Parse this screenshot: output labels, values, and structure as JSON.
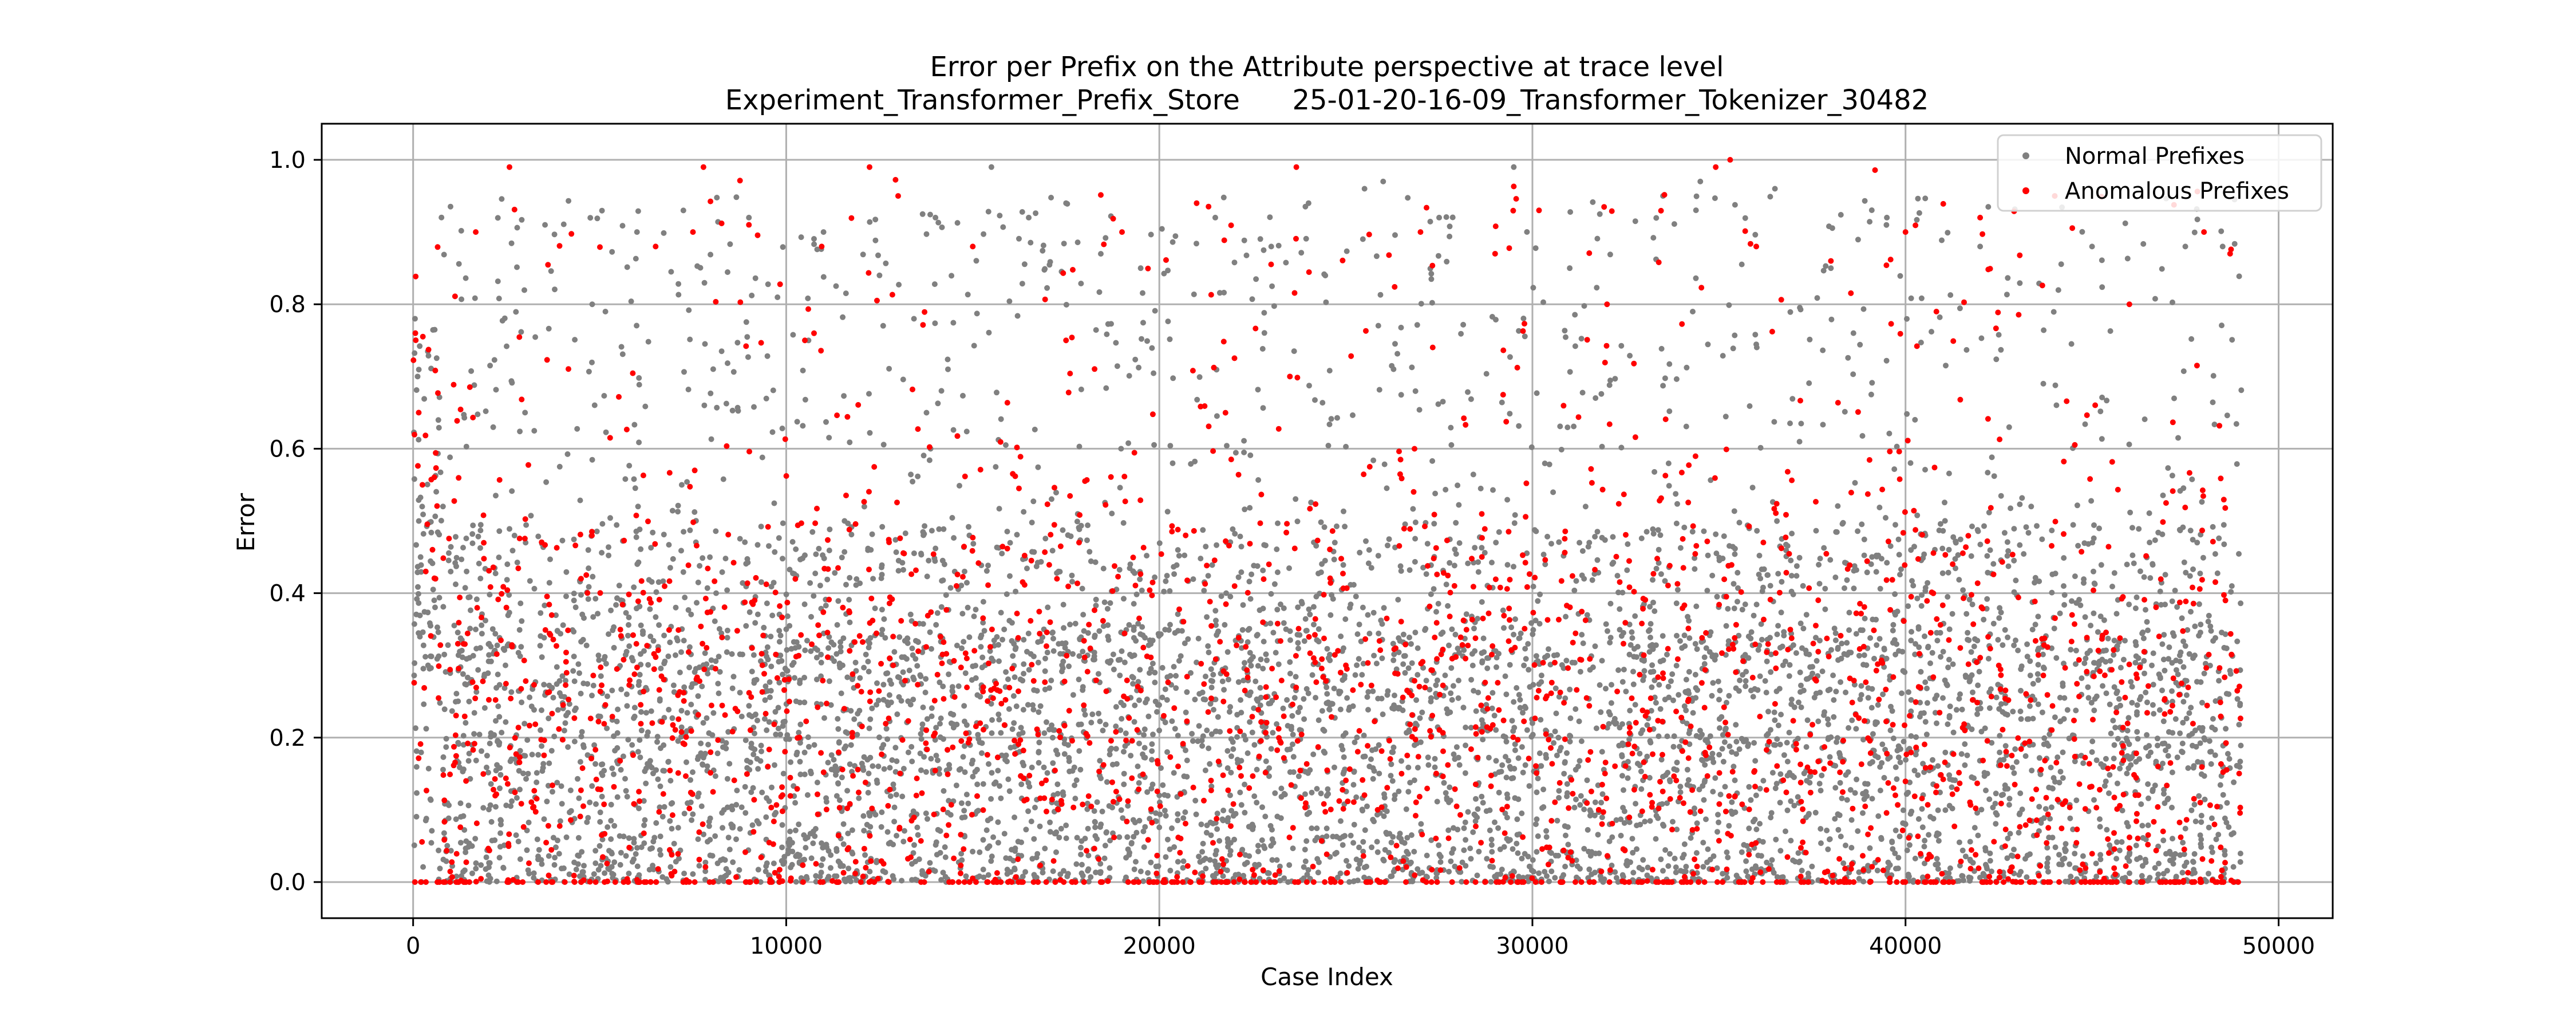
{
  "chart_data": {
    "type": "scatter",
    "title": "Error per Prefix on the Attribute perspective at trace level",
    "subtitle": "Experiment_Transformer_Prefix_Store      25-01-20-16-09_Transformer_Tokenizer_30482",
    "xlabel": "Case Index",
    "ylabel": "Error",
    "xlim": [
      -2450,
      51450
    ],
    "ylim": [
      -0.05,
      1.05
    ],
    "x_ticks": [
      0,
      10000,
      20000,
      30000,
      40000,
      50000
    ],
    "x_tick_labels": [
      "0",
      "10000",
      "20000",
      "30000",
      "40000",
      "50000"
    ],
    "y_ticks": [
      0.0,
      0.2,
      0.4,
      0.6,
      0.8,
      1.0
    ],
    "y_tick_labels": [
      "0.0",
      "0.2",
      "0.4",
      "0.6",
      "0.8",
      "1.0"
    ],
    "grid": true,
    "legend_position": "top-right",
    "x_range_of_points": [
      0,
      49000
    ],
    "series": [
      {
        "name": "Normal Prefixes",
        "color": "#808080",
        "points": [
          [
            50,
            0.78
          ],
          [
            120,
            0.7
          ],
          [
            200,
            0.45
          ],
          [
            400,
            0.3
          ],
          [
            800,
            0.52
          ],
          [
            1500,
            0.25
          ],
          [
            3000,
            0.65
          ],
          [
            4800,
            0.8
          ],
          [
            6000,
            0.9
          ],
          [
            7200,
            0.55
          ],
          [
            9000,
            0.92
          ],
          [
            11000,
            0.9
          ],
          [
            12500,
            0.84
          ],
          [
            14000,
            0.92
          ],
          [
            15500,
            0.99
          ],
          [
            16500,
            0.92
          ],
          [
            17500,
            0.94
          ],
          [
            19500,
            0.85
          ],
          [
            21500,
            0.92
          ],
          [
            23000,
            0.88
          ],
          [
            24000,
            0.94
          ],
          [
            25500,
            0.96
          ],
          [
            26000,
            0.97
          ],
          [
            27500,
            0.92
          ],
          [
            29500,
            0.99
          ],
          [
            31000,
            0.85
          ],
          [
            33500,
            0.95
          ],
          [
            34500,
            0.97
          ],
          [
            36500,
            0.96
          ],
          [
            38000,
            0.85
          ],
          [
            39500,
            0.92
          ],
          [
            42000,
            0.88
          ],
          [
            44000,
            0.95
          ],
          [
            45000,
            0.88
          ],
          [
            47500,
            0.88
          ],
          [
            48500,
            0.88
          ],
          [
            10000,
            0.35
          ],
          [
            20000,
            0.12
          ],
          [
            30000,
            0.22
          ],
          [
            40000,
            0.08
          ],
          [
            45000,
            0.18
          ],
          [
            5000,
            0.05
          ]
        ]
      },
      {
        "name": "Anomalous Prefixes",
        "color": "#ff0000",
        "points": [
          [
            60,
            0.76
          ],
          [
            150,
            0.65
          ],
          [
            250,
            0.55
          ],
          [
            600,
            0.42
          ],
          [
            1200,
            0.33
          ],
          [
            2500,
            0.38
          ],
          [
            4500,
            0.42
          ],
          [
            6500,
            0.88
          ],
          [
            7500,
            0.9
          ],
          [
            9000,
            0.91
          ],
          [
            10500,
            0.75
          ],
          [
            13000,
            0.95
          ],
          [
            15000,
            0.88
          ],
          [
            17500,
            0.75
          ],
          [
            19000,
            0.9
          ],
          [
            21000,
            0.94
          ],
          [
            23500,
            0.7
          ],
          [
            25000,
            0.3
          ],
          [
            27000,
            0.9
          ],
          [
            29000,
            0.87
          ],
          [
            32000,
            0.8
          ],
          [
            35300,
            1.0
          ],
          [
            36000,
            0.88
          ],
          [
            38000,
            0.86
          ],
          [
            40000,
            0.9
          ],
          [
            42000,
            0.92
          ],
          [
            44000,
            0.95
          ],
          [
            46000,
            0.8
          ],
          [
            48000,
            0.9
          ],
          [
            48700,
            0.87
          ],
          [
            12000,
            0.0
          ],
          [
            22000,
            0.0
          ],
          [
            34000,
            0.0
          ],
          [
            46000,
            0.0
          ]
        ]
      }
    ]
  }
}
